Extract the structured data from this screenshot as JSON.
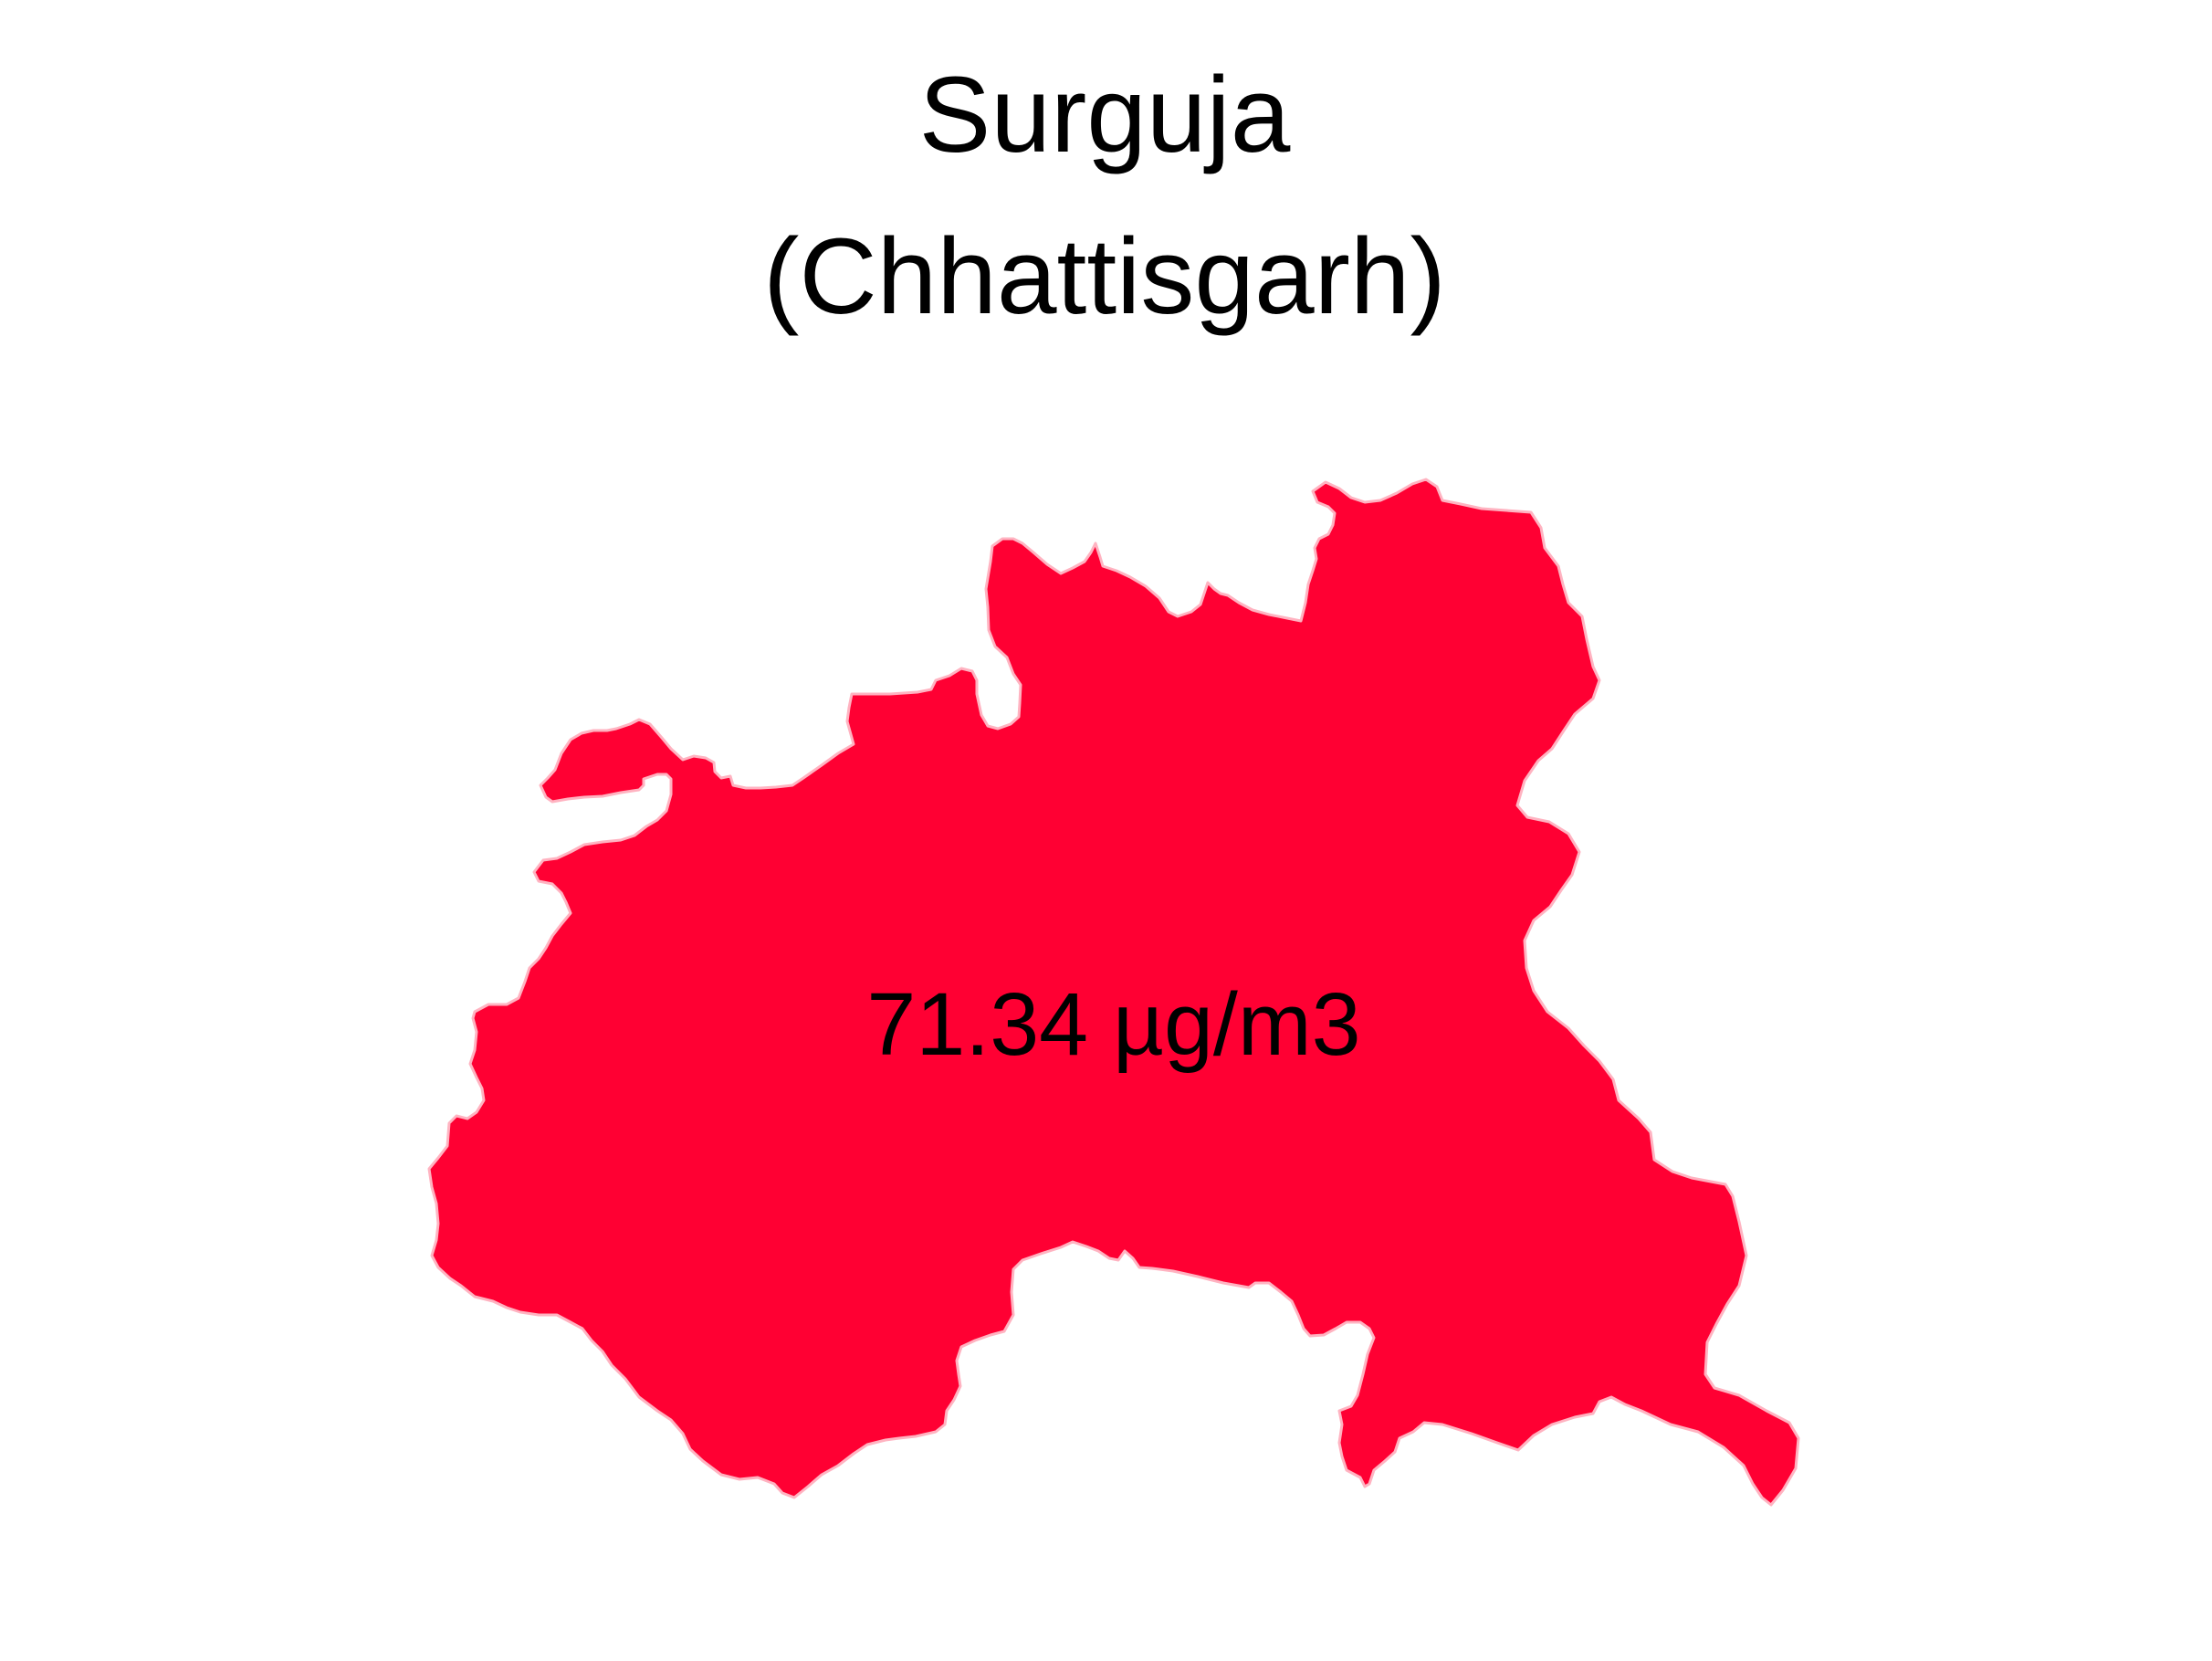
{
  "map": {
    "title_line1": "Surguja",
    "title_line2": "(Chhattisgarh)",
    "region_name": "Surguja",
    "state_name": "Chhattisgarh",
    "value_label": "71.34 µg/m3",
    "value": 71.34,
    "unit": "µg/m3",
    "fill_color": "#FF0033",
    "stroke_color": "#FFB3C1",
    "background_color": "#FFFFFF"
  }
}
